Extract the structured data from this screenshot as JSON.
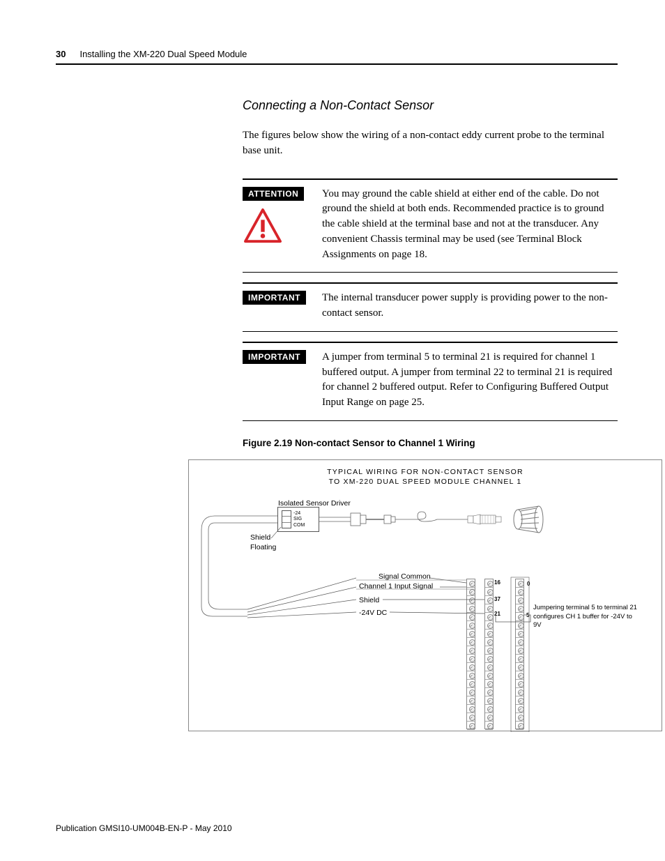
{
  "header": {
    "page_number": "30",
    "chapter_title": "Installing the XM-220 Dual Speed Module"
  },
  "section": {
    "title": "Connecting a Non-Contact Sensor",
    "intro": "The figures below show the wiring of a non-contact eddy current probe to the terminal base unit."
  },
  "callouts": [
    {
      "badge": "ATTENTION",
      "has_icon": true,
      "text": "You may ground the cable shield at either end of the cable. Do not ground the shield at both ends. Recommended practice is to ground the cable shield at the terminal base and not at the transducer. Any convenient Chassis terminal may be used (see Terminal Block Assignments on page 18."
    },
    {
      "badge": "IMPORTANT",
      "has_icon": false,
      "text": "The internal transducer power supply is providing power to the non-contact sensor."
    },
    {
      "badge": "IMPORTANT",
      "has_icon": false,
      "text": "A jumper from terminal 5 to terminal 21 is required for channel 1 buffered output. A jumper from terminal 22 to terminal 21 is required for channel 2 buffered output. Refer to Configuring Buffered Output Input Range on page 25."
    }
  ],
  "figure": {
    "caption": "Figure 2.19 Non-contact Sensor to Channel 1 Wiring",
    "title_line1": "TYPICAL WIRING FOR NON-CONTACT SENSOR",
    "title_line2": "TO XM-220 DUAL SPEED MODULE CHANNEL 1",
    "labels": {
      "driver": "Isolated Sensor Driver",
      "shield_floating_1": "Shield",
      "shield_floating_2": "Floating",
      "sig_common": "Signal Common",
      "ch1_input": "Channel 1 Input Signal",
      "shield": "Shield",
      "minus24v": "-24V DC",
      "jumper_note": "Jumpering terminal 5 to terminal 21 configures CH 1 buffer for -24V to 9V"
    },
    "driver_pins": {
      "m24": "-24",
      "sig": "SIG",
      "com": "COM"
    },
    "terminals": {
      "t16": "16",
      "t0": "0",
      "t37": "37",
      "t21": "21",
      "t5": "5"
    },
    "terminal_strip_rows": 18,
    "colors": {
      "attention_red": "#d8242a",
      "wire": "#000000",
      "border": "#888888"
    }
  },
  "footer": {
    "pub": "Publication GMSI10-UM004B-EN-P - May 2010"
  }
}
